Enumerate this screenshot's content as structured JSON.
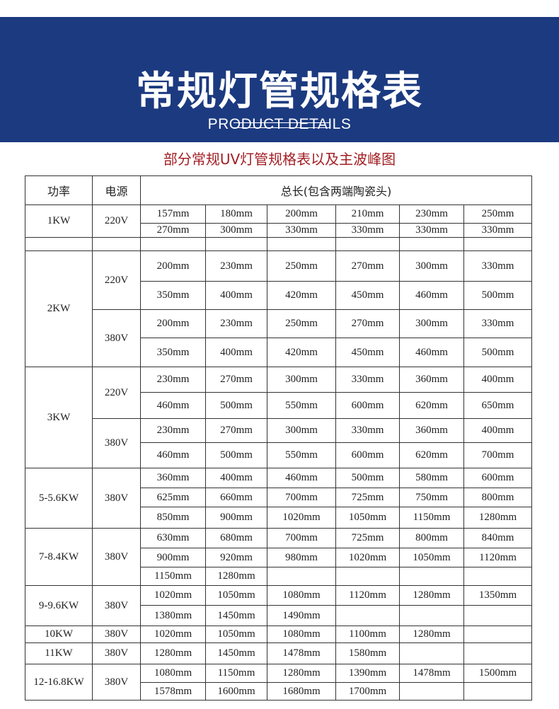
{
  "banner": {
    "title": "常规灯管规格表",
    "subtitle": "PRODUCT DETAILS",
    "color": "#1c3a80"
  },
  "caption": "部分常规UV灯管规格表以及主波峰图",
  "table": {
    "headers": [
      "功率",
      "电源",
      "总长(包含两端陶瓷头)"
    ],
    "sections": [
      {
        "power": "1KW",
        "voltages": [
          {
            "voltage": "220V",
            "rows": [
              [
                "157mm",
                "180mm",
                "200mm",
                "210mm",
                "230mm",
                "250mm"
              ],
              [
                "270mm",
                "300mm",
                "330mm",
                "330mm",
                "330mm",
                "330mm"
              ]
            ]
          }
        ]
      },
      {
        "power": "",
        "voltages": [
          {
            "voltage": "",
            "rows": [
              [
                "",
                "",
                "",
                "",
                "",
                ""
              ]
            ]
          }
        ]
      },
      {
        "power": "2KW",
        "voltages": [
          {
            "voltage": "220V",
            "rows": [
              [
                "200mm",
                "230mm",
                "250mm",
                "270mm",
                "300mm",
                "330mm"
              ],
              [
                "350mm",
                "400mm",
                "420mm",
                "450mm",
                "460mm",
                "500mm"
              ]
            ]
          },
          {
            "voltage": "380V",
            "rows": [
              [
                "200mm",
                "230mm",
                "250mm",
                "270mm",
                "300mm",
                "330mm"
              ],
              [
                "350mm",
                "400mm",
                "420mm",
                "450mm",
                "460mm",
                "500mm"
              ]
            ]
          }
        ]
      },
      {
        "power": "3KW",
        "voltages": [
          {
            "voltage": "220V",
            "rows": [
              [
                "230mm",
                "270mm",
                "300mm",
                "330mm",
                "360mm",
                "400mm"
              ],
              [
                "460mm",
                "500mm",
                "550mm",
                "600mm",
                "620mm",
                "650mm"
              ]
            ]
          },
          {
            "voltage": "380V",
            "rows": [
              [
                "230mm",
                "270mm",
                "300mm",
                "330mm",
                "360mm",
                "400mm"
              ],
              [
                "460mm",
                "500mm",
                "550mm",
                "600mm",
                "620mm",
                "700mm"
              ]
            ]
          }
        ]
      },
      {
        "power": "5-5.6KW",
        "voltages": [
          {
            "voltage": "380V",
            "rows": [
              [
                "360mm",
                "400mm",
                "460mm",
                "500mm",
                "580mm",
                "600mm"
              ],
              [
                "625mm",
                "660mm",
                "700mm",
                "725mm",
                "750mm",
                "800mm"
              ],
              [
                "850mm",
                "900mm",
                "1020mm",
                "1050mm",
                "1150mm",
                "1280mm"
              ]
            ]
          }
        ]
      },
      {
        "power": "7-8.4KW",
        "voltages": [
          {
            "voltage": "380V",
            "rows": [
              [
                "630mm",
                "680mm",
                "700mm",
                "725mm",
                "800mm",
                "840mm"
              ],
              [
                "900mm",
                "920mm",
                "980mm",
                "1020mm",
                "1050mm",
                "1120mm"
              ],
              [
                "1150mm",
                "1280mm",
                "",
                "",
                "",
                ""
              ]
            ]
          }
        ]
      },
      {
        "power": "9-9.6KW",
        "voltages": [
          {
            "voltage": "380V",
            "rows": [
              [
                "1020mm",
                "1050mm",
                "1080mm",
                "1120mm",
                "1280mm",
                "1350mm"
              ],
              [
                "1380mm",
                "1450mm",
                "1490mm",
                "",
                "",
                ""
              ]
            ]
          }
        ]
      },
      {
        "power": "10KW",
        "voltages": [
          {
            "voltage": "380V",
            "rows": [
              [
                "1020mm",
                "1050mm",
                "1080mm",
                "1100mm",
                "1280mm",
                ""
              ]
            ]
          }
        ]
      },
      {
        "power": "11KW",
        "voltages": [
          {
            "voltage": "380V",
            "rows": [
              [
                "1280mm",
                "1450mm",
                "1478mm",
                "1580mm",
                "",
                ""
              ]
            ]
          }
        ]
      },
      {
        "power": "12-16.8KW",
        "voltages": [
          {
            "voltage": "380V",
            "rows": [
              [
                "1080mm",
                "1150mm",
                "1280mm",
                "1390mm",
                "1478mm",
                "1500mm"
              ],
              [
                "1578mm",
                "1600mm",
                "1680mm",
                "1700mm",
                "",
                ""
              ]
            ]
          }
        ]
      }
    ]
  }
}
